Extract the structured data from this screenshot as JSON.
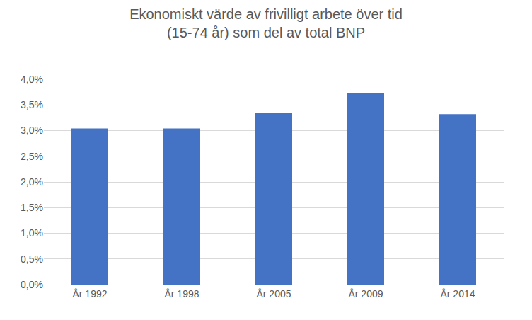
{
  "chart_data": {
    "type": "bar",
    "title": "Ekonomiskt värde av frivilligt arbete över tid\n(15-74 år) som del av total BNP",
    "categories": [
      "År 1992",
      "År 1998",
      "År 2005",
      "År 2009",
      "År 2014"
    ],
    "values": [
      3.04,
      3.04,
      3.34,
      3.73,
      3.32
    ],
    "color": "#4472c4",
    "ylim": [
      0,
      4
    ],
    "yticks": [
      {
        "value": 0,
        "label": "0,0%"
      },
      {
        "value": 0.5,
        "label": "0,5%"
      },
      {
        "value": 1,
        "label": "1,0%"
      },
      {
        "value": 1.5,
        "label": "1,5%"
      },
      {
        "value": 2,
        "label": "2,0%"
      },
      {
        "value": 2.5,
        "label": "2,5%"
      },
      {
        "value": 3,
        "label": "3,0%"
      },
      {
        "value": 3.5,
        "label": "3,5%"
      },
      {
        "value": 4,
        "label": "4,0%"
      }
    ],
    "grid": true
  }
}
